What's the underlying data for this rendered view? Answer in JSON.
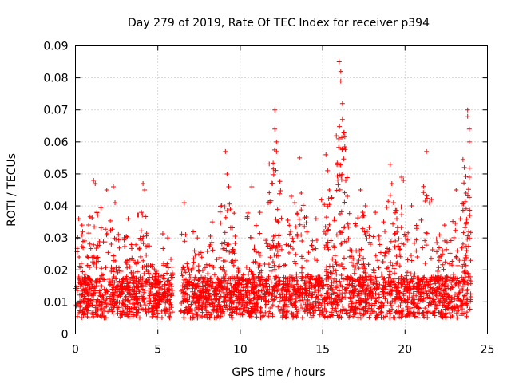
{
  "chart_data": {
    "type": "scatter",
    "title": "Day 279 of 2019, Rate Of TEC Index for receiver p394",
    "xlabel": "GPS time / hours",
    "ylabel": "ROTI / TECUs",
    "xlim": [
      0,
      25
    ],
    "ylim": [
      0,
      0.09
    ],
    "x_ticks": [
      0,
      5,
      10,
      15,
      20,
      25
    ],
    "y_ticks": [
      0,
      0.01,
      0.02,
      0.03,
      0.04,
      0.05,
      0.06,
      0.07,
      0.08,
      0.09
    ],
    "x_tick_labels": [
      "0",
      "5",
      "10",
      "15",
      "20",
      "25"
    ],
    "y_tick_labels": [
      "0",
      "0.01",
      "0.02",
      "0.03",
      "0.04",
      "0.05",
      "0.06",
      "0.07",
      "0.08",
      "0.09"
    ],
    "grid": true,
    "marker": "+",
    "marker_color": "#ff0000",
    "data_gap_hours": [
      5.9,
      6.4
    ],
    "series": [
      {
        "name": "ROTI",
        "baseline_band": [
          0.005,
          0.018
        ],
        "notable_points": [
          [
            0.2,
            0.036
          ],
          [
            0.4,
            0.034
          ],
          [
            1.1,
            0.048
          ],
          [
            1.2,
            0.047
          ],
          [
            1.3,
            0.038
          ],
          [
            1.9,
            0.045
          ],
          [
            2.3,
            0.046
          ],
          [
            2.4,
            0.041
          ],
          [
            3.2,
            0.036
          ],
          [
            4.0,
            0.038
          ],
          [
            4.1,
            0.047
          ],
          [
            4.2,
            0.045
          ],
          [
            5.6,
            0.03
          ],
          [
            6.6,
            0.041
          ],
          [
            7.4,
            0.03
          ],
          [
            8.3,
            0.035
          ],
          [
            9.1,
            0.057
          ],
          [
            9.2,
            0.05
          ],
          [
            9.3,
            0.046
          ],
          [
            9.4,
            0.039
          ],
          [
            10.7,
            0.046
          ],
          [
            11.2,
            0.038
          ],
          [
            11.7,
            0.041
          ],
          [
            12.1,
            0.07
          ],
          [
            12.1,
            0.064
          ],
          [
            12.2,
            0.06
          ],
          [
            12.2,
            0.057
          ],
          [
            12.3,
            0.035
          ],
          [
            13.1,
            0.043
          ],
          [
            13.6,
            0.055
          ],
          [
            13.7,
            0.044
          ],
          [
            14.6,
            0.036
          ],
          [
            15.2,
            0.056
          ],
          [
            15.3,
            0.051
          ],
          [
            15.4,
            0.045
          ],
          [
            16.0,
            0.085
          ],
          [
            16.1,
            0.082
          ],
          [
            16.1,
            0.079
          ],
          [
            16.2,
            0.072
          ],
          [
            16.2,
            0.067
          ],
          [
            16.3,
            0.063
          ],
          [
            16.0,
            0.053
          ],
          [
            16.4,
            0.048
          ],
          [
            16.5,
            0.043
          ],
          [
            17.3,
            0.045
          ],
          [
            17.6,
            0.04
          ],
          [
            18.2,
            0.038
          ],
          [
            18.7,
            0.035
          ],
          [
            19.1,
            0.053
          ],
          [
            19.2,
            0.047
          ],
          [
            19.3,
            0.041
          ],
          [
            19.5,
            0.036
          ],
          [
            19.8,
            0.049
          ],
          [
            19.9,
            0.048
          ],
          [
            20.4,
            0.04
          ],
          [
            21.3,
            0.057
          ],
          [
            21.6,
            0.042
          ],
          [
            22.4,
            0.034
          ],
          [
            23.1,
            0.045
          ],
          [
            23.6,
            0.052
          ],
          [
            23.7,
            0.044
          ],
          [
            23.8,
            0.07
          ],
          [
            23.8,
            0.068
          ],
          [
            23.9,
            0.064
          ],
          [
            23.9,
            0.06
          ],
          [
            23.9,
            0.049
          ]
        ]
      }
    ]
  }
}
